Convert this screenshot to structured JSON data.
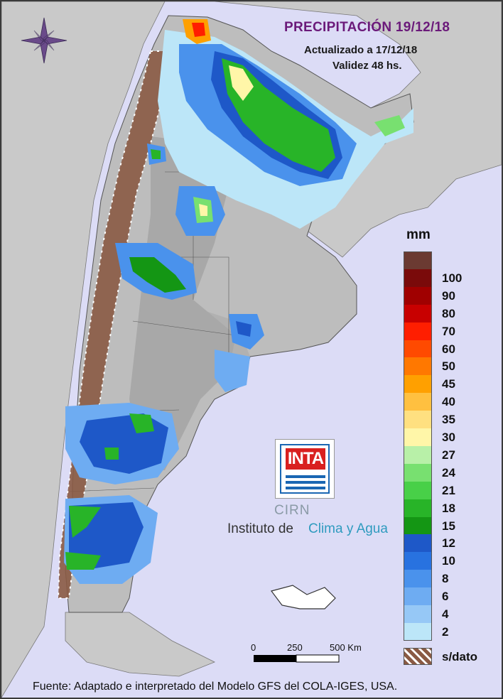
{
  "header": {
    "title": "PRECIPITACIÓN 19/12/18",
    "updated": "Actualizado a 17/12/18",
    "validity": "Validez 48 hs."
  },
  "legend": {
    "unit": "mm",
    "levels": [
      {
        "label": "",
        "color": "#6b3a32"
      },
      {
        "label": "100",
        "color": "#7a0a0a"
      },
      {
        "label": "90",
        "color": "#a00000"
      },
      {
        "label": "80",
        "color": "#c80000"
      },
      {
        "label": "70",
        "color": "#ff1e00"
      },
      {
        "label": "60",
        "color": "#ff4a00"
      },
      {
        "label": "50",
        "color": "#ff7800"
      },
      {
        "label": "45",
        "color": "#ffa000"
      },
      {
        "label": "40",
        "color": "#ffc040"
      },
      {
        "label": "35",
        "color": "#ffe080"
      },
      {
        "label": "30",
        "color": "#fff6a8"
      },
      {
        "label": "27",
        "color": "#b8f0a8"
      },
      {
        "label": "24",
        "color": "#78e070"
      },
      {
        "label": "21",
        "color": "#48d048"
      },
      {
        "label": "18",
        "color": "#28b428"
      },
      {
        "label": "15",
        "color": "#149614"
      },
      {
        "label": "12",
        "color": "#1e58c8"
      },
      {
        "label": "10",
        "color": "#2872e0"
      },
      {
        "label": "8",
        "color": "#4a92ec"
      },
      {
        "label": "6",
        "color": "#6eacf2"
      },
      {
        "label": "4",
        "color": "#96c8f6"
      },
      {
        "label": "2",
        "color": "#bce6f8"
      }
    ],
    "nodata_label": "s/dato",
    "nodata_color": "#8a5a44"
  },
  "scale_bar": {
    "labels": [
      "0",
      "250",
      "500 Km"
    ]
  },
  "logo": {
    "brand": "INTA",
    "cirn": "CIRN",
    "institute_prefix": "Instituto de",
    "institute_highlight": "Clima y Agua"
  },
  "footer": {
    "source": "Fuente: Adaptado e interpretado del Modelo GFS del COLA-IGES, USA."
  },
  "map": {
    "land_color": "#bdbdbd",
    "relief_color": "#9f9f9f",
    "neighbor_color": "#c9c9c9",
    "sea_color": "#dcdcf6",
    "compass_color": "#6a4a8a"
  }
}
